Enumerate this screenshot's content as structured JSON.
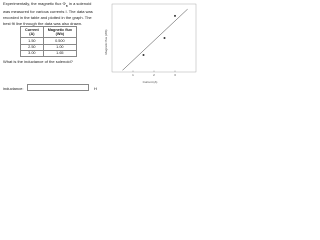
{
  "intro": {
    "before": "Experimentally, the magnetic flux ",
    "symbol": "Φ",
    "subscript": "B",
    "after": " in a solenoid was measured for various currents I. The data was recorded in the table and plotted in the graph. The best fit line through the data was also drawn."
  },
  "table": {
    "headers": [
      [
        "Current",
        "(A)"
      ],
      [
        "Magnetic flux",
        "(Wb)"
      ]
    ],
    "rows": [
      [
        "1.50",
        "0.500"
      ],
      [
        "2.50",
        "1.00"
      ],
      [
        "3.00",
        "1.65"
      ]
    ]
  },
  "question": "What is the inductance of the solenoid?",
  "answer": {
    "label": "inductance:",
    "unit": "H"
  },
  "graph": {
    "x_label": "Current (A)",
    "y_label": "Magnetic flux (Wb)",
    "xlim": [
      0,
      4
    ],
    "ylim": [
      0,
      2
    ],
    "xticks": [
      1,
      2,
      3
    ],
    "x": [
      1.5,
      2.5,
      3.0
    ],
    "y": [
      0.5,
      1.0,
      1.65
    ]
  }
}
